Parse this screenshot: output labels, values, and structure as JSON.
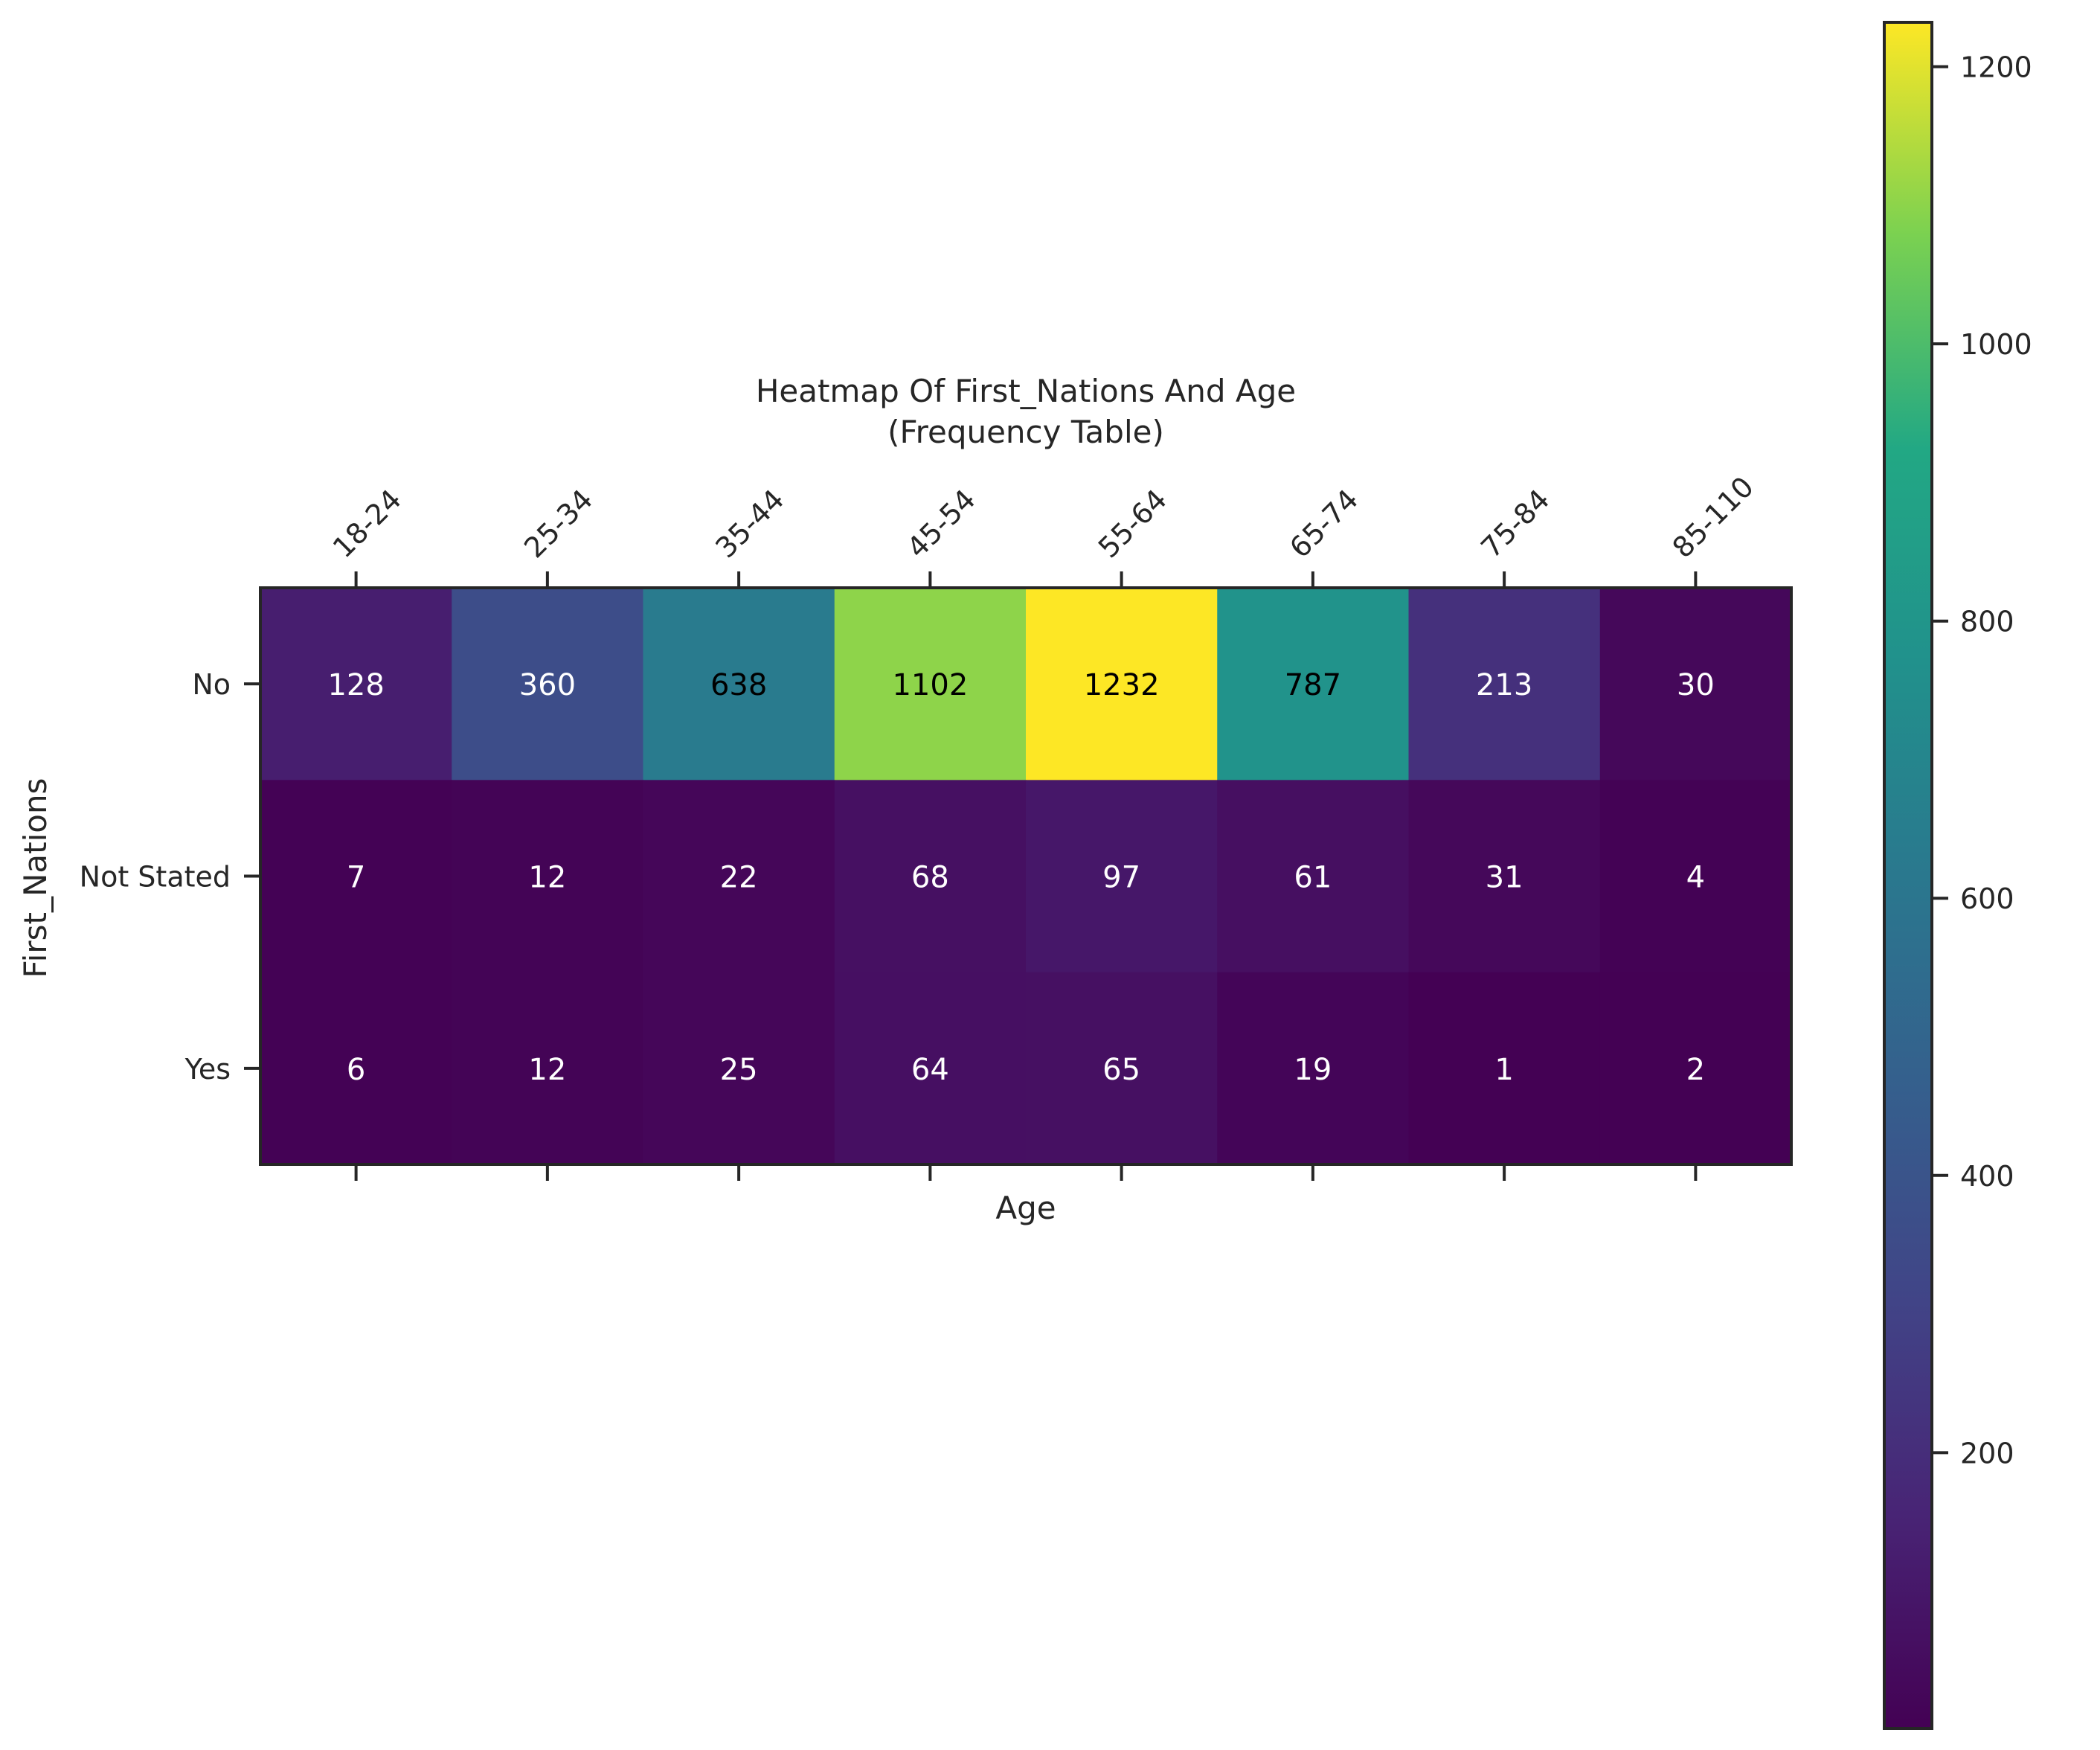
{
  "chart_data": {
    "type": "heatmap",
    "title": "Heatmap Of First_Nations And Age",
    "subtitle": "(Frequency Table)",
    "xlabel": "Age",
    "ylabel": "First_Nations",
    "x_categories": [
      "18-24",
      "25-34",
      "35-44",
      "45-54",
      "55-64",
      "65-74",
      "75-84",
      "85-110"
    ],
    "y_categories": [
      "No",
      "Not Stated",
      "Yes"
    ],
    "values": [
      [
        128,
        360,
        638,
        1102,
        1232,
        787,
        213,
        30
      ],
      [
        7,
        12,
        22,
        68,
        97,
        61,
        31,
        4
      ],
      [
        6,
        12,
        25,
        64,
        65,
        19,
        1,
        2
      ]
    ],
    "colormap": "viridis",
    "color_range": [
      1,
      1232
    ],
    "colorbar_ticks": [
      "200",
      "400",
      "600",
      "800",
      "1000",
      "1200"
    ],
    "x_tick_position": "top",
    "legend": "colorbar-right",
    "grid": false
  }
}
